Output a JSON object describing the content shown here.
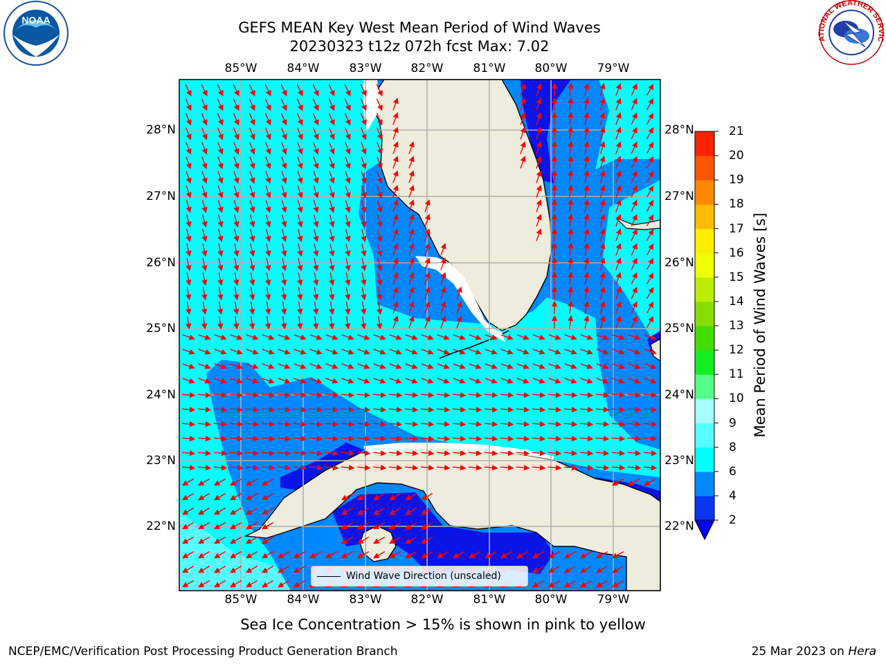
{
  "title_line1": "GEFS MEAN Key West Mean Period of Wind Waves",
  "title_line2": "20230323 t12z 072h fcst   Max: 7.02",
  "lon_ticks": [
    "85°W",
    "84°W",
    "83°W",
    "82°W",
    "81°W",
    "80°W",
    "79°W"
  ],
  "lat_ticks": [
    "28°N",
    "27°N",
    "26°N",
    "25°N",
    "24°N",
    "23°N",
    "22°N"
  ],
  "colorbar": {
    "label": "Mean Period of Wind Waves [s]",
    "ticks": [
      "21",
      "20",
      "19",
      "18",
      "17",
      "16",
      "15",
      "14",
      "13",
      "12",
      "11",
      "10",
      "9",
      "8",
      "6",
      "4",
      "2"
    ],
    "levels": [
      2,
      4,
      6,
      8,
      9,
      10,
      11,
      12,
      13,
      14,
      15,
      16,
      17,
      18,
      19,
      20,
      21
    ],
    "colors": [
      "#0a37f0",
      "#0088ff",
      "#00ffff",
      "#55ffff",
      "#a6ffff",
      "#55ff88",
      "#11ee22",
      "#44dd00",
      "#88dd00",
      "#bbee00",
      "#eeff00",
      "#ffee00",
      "#ffbb00",
      "#ff8800",
      "#ff5500",
      "#ff2200",
      "#ff0000"
    ],
    "under_color": "#0000ee"
  },
  "legend_label": "Wind Wave Direction (unscaled)",
  "colors": {
    "shallow_cyan": "#00ffff",
    "mid_blue": "#0088ff",
    "deep_blue": "#0a14e6",
    "land": "#eeecdc",
    "arrow": "#ff0000"
  },
  "note": "Sea Ice Concentration > 15% is shown in pink to yellow",
  "footer_left": "NCEP/EMC/Verification Post Processing Product Generation Branch",
  "footer_right_date": "25 Mar 2023 on ",
  "footer_right_host": "Hera",
  "logos": {
    "left": "NOAA",
    "right": "NATIONAL WEATHER SERVICE"
  }
}
